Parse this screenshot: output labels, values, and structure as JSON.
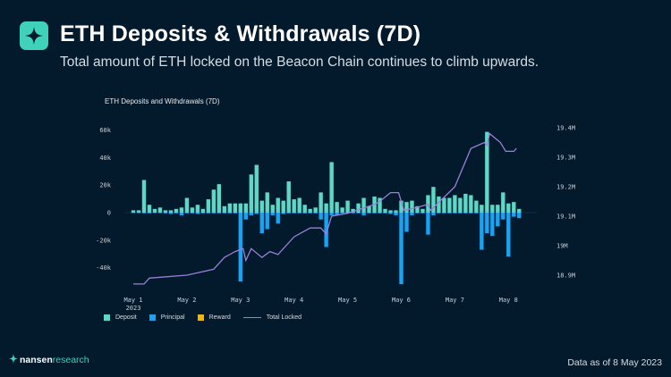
{
  "header": {
    "title": "ETH Deposits & Withdrawals (7D)",
    "subtitle": "Total amount of ETH locked on the Beacon Chain continues to climb upwards."
  },
  "footer": {
    "brand_bold": "nansen",
    "brand_light": "research",
    "data_as_of": "Data as of 8 May 2023"
  },
  "colors": {
    "deposit": "#5fd6c8",
    "principal": "#1aa3f0",
    "reward": "#f2b705",
    "total_locked": "#9a7fd6",
    "brand": "#3fd1b9"
  },
  "chart_data": {
    "type": "bar+line",
    "title": "ETH Deposits and Withdrawals (7D)",
    "x_unit": "days since May 1 2023",
    "x_ticks": [
      {
        "day": 0,
        "label": "May 1",
        "sub": "2023"
      },
      {
        "day": 1,
        "label": "May 2"
      },
      {
        "day": 2,
        "label": "May 3"
      },
      {
        "day": 3,
        "label": "May 4"
      },
      {
        "day": 4,
        "label": "May 5"
      },
      {
        "day": 5,
        "label": "May 6"
      },
      {
        "day": 6,
        "label": "May 7"
      },
      {
        "day": 7,
        "label": "May 8"
      }
    ],
    "y_left": {
      "ylim": [
        -55000,
        65000
      ],
      "ticks": [
        60000,
        40000,
        20000,
        0,
        -20000,
        -40000
      ],
      "tick_labels": [
        "60k",
        "40k",
        "20k",
        "0",
        "-20k",
        "-40k"
      ]
    },
    "y_right": {
      "ylim": [
        18.85,
        19.42
      ],
      "ticks": [
        19.4,
        19.3,
        19.2,
        19.1,
        19.0,
        18.9
      ],
      "tick_labels": [
        "19.4M",
        "19.3M",
        "19.2M",
        "19.1M",
        "19M",
        "18.9M"
      ]
    },
    "bar_step_days": 0.1,
    "deposit_k": [
      1,
      1,
      23,
      5,
      2,
      3,
      1,
      1,
      2,
      3,
      10,
      3,
      5,
      2,
      9,
      16,
      20,
      4,
      6,
      6,
      6,
      6,
      27,
      34,
      8,
      14,
      5,
      10,
      8,
      22,
      9,
      10,
      5,
      2,
      3,
      14,
      6,
      36,
      7,
      3,
      8,
      2,
      6,
      10,
      4,
      11,
      10,
      2,
      1,
      1,
      8,
      7,
      8,
      4,
      2,
      12,
      18,
      11,
      10,
      10,
      12,
      10,
      13,
      12,
      8,
      5,
      58,
      5,
      5,
      14,
      6,
      7,
      2
    ],
    "principal_k": [
      -0.3,
      -0.3,
      -0.5,
      -0.5,
      -0.3,
      -0.3,
      -0.5,
      -1,
      -0.5,
      -2,
      -0.5,
      -0.5,
      -1,
      -0.5,
      -0.5,
      -0.5,
      -0.5,
      -0.5,
      -0.5,
      -0.5,
      -50,
      -5,
      -2,
      -1,
      -15,
      -12,
      -2,
      -8,
      -1,
      -0.5,
      -0.5,
      -0.5,
      -0.5,
      -0.5,
      -0.5,
      -5,
      -25,
      -2,
      -2,
      -0.5,
      -0.5,
      -0.5,
      -0.5,
      -2,
      -0.5,
      -0.5,
      -0.5,
      -0.5,
      -1,
      -2,
      -52,
      -14,
      -2,
      -0.5,
      -0.5,
      -16,
      -2,
      -0.5,
      -0.5,
      -0.5,
      -0.5,
      -0.5,
      -0.5,
      -0.5,
      -0.5,
      -27,
      -15,
      -17,
      -10,
      -5,
      -32,
      -3,
      -4
    ],
    "reward_k": 0.7,
    "total_locked_M": [
      [
        0,
        18.87
      ],
      [
        0.2,
        18.87
      ],
      [
        0.3,
        18.89
      ],
      [
        1.0,
        18.9
      ],
      [
        1.5,
        18.92
      ],
      [
        1.7,
        18.96
      ],
      [
        1.9,
        18.98
      ],
      [
        2.05,
        18.99
      ],
      [
        2.1,
        18.95
      ],
      [
        2.2,
        18.99
      ],
      [
        2.4,
        18.96
      ],
      [
        2.55,
        18.98
      ],
      [
        2.7,
        18.97
      ],
      [
        3.0,
        19.03
      ],
      [
        3.3,
        19.06
      ],
      [
        3.5,
        19.06
      ],
      [
        3.6,
        19.04
      ],
      [
        3.7,
        19.1
      ],
      [
        4.0,
        19.11
      ],
      [
        4.5,
        19.14
      ],
      [
        4.6,
        19.15
      ],
      [
        4.8,
        19.18
      ],
      [
        4.95,
        19.18
      ],
      [
        5.05,
        19.12
      ],
      [
        5.3,
        19.13
      ],
      [
        5.5,
        19.14
      ],
      [
        5.55,
        19.12
      ],
      [
        6.0,
        19.2
      ],
      [
        6.3,
        19.33
      ],
      [
        6.55,
        19.35
      ],
      [
        6.6,
        19.34
      ],
      [
        6.65,
        19.38
      ],
      [
        6.85,
        19.35
      ],
      [
        6.95,
        19.32
      ],
      [
        7.1,
        19.32
      ],
      [
        7.15,
        19.33
      ]
    ],
    "legend": [
      "Deposit",
      "Principal",
      "Reward",
      "Total Locked"
    ],
    "legend_position": "bottom-left",
    "grid": false
  }
}
